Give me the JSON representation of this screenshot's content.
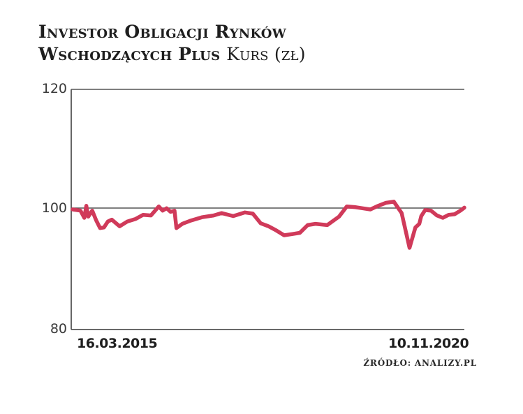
{
  "title": {
    "bold": "Investor Obligacji Rynków Wschodzących Plus",
    "light": "Kurs (zł)"
  },
  "axis": {
    "y_ticks": [
      "120",
      "100",
      "80"
    ],
    "x_start": "16.03.2015",
    "x_end": "10.11.2020"
  },
  "source": "ŹRÓDŁO: ANALIZY.PL",
  "colors": {
    "line": "#d03a5a",
    "axis": "#555555",
    "text": "#1e1e1e"
  },
  "chart_data": {
    "type": "line",
    "title": "Investor Obligacji Rynków Wschodzących Plus Kurs (zł)",
    "xlabel": "",
    "ylabel": "Kurs (zł)",
    "ylim": [
      80,
      120
    ],
    "y_ticks": [
      80,
      100,
      120
    ],
    "x_range": [
      "16.03.2015",
      "10.11.2020"
    ],
    "grid": "horizontal lines at 100 and 120",
    "legend": "none",
    "series": [
      {
        "name": "Kurs (zł)",
        "x_fraction": [
          0.0,
          0.02,
          0.03,
          0.035,
          0.04,
          0.05,
          0.06,
          0.07,
          0.08,
          0.09,
          0.1,
          0.12,
          0.14,
          0.16,
          0.18,
          0.2,
          0.22,
          0.23,
          0.24,
          0.25,
          0.26,
          0.265,
          0.28,
          0.3,
          0.33,
          0.36,
          0.38,
          0.41,
          0.44,
          0.46,
          0.48,
          0.5,
          0.52,
          0.54,
          0.56,
          0.58,
          0.6,
          0.62,
          0.65,
          0.68,
          0.7,
          0.72,
          0.74,
          0.76,
          0.78,
          0.8,
          0.82,
          0.84,
          0.86,
          0.875,
          0.885,
          0.89,
          0.9,
          0.915,
          0.93,
          0.945,
          0.96,
          0.975,
          0.99,
          1.0
        ],
        "values": [
          100.0,
          99.8,
          98.6,
          100.6,
          98.8,
          99.8,
          98.2,
          96.9,
          97.0,
          98.0,
          98.3,
          97.2,
          98.0,
          98.4,
          99.1,
          99.0,
          100.5,
          99.8,
          100.2,
          99.6,
          99.8,
          96.9,
          97.6,
          98.1,
          98.7,
          99.0,
          99.4,
          98.9,
          99.5,
          99.3,
          97.7,
          97.2,
          96.5,
          95.7,
          95.9,
          96.1,
          97.4,
          97.6,
          97.4,
          98.8,
          100.5,
          100.4,
          100.2,
          100.0,
          100.6,
          101.1,
          101.3,
          99.4,
          93.6,
          97.0,
          97.6,
          98.9,
          99.9,
          99.8,
          99.0,
          98.6,
          99.1,
          99.2,
          99.8,
          100.3
        ]
      }
    ]
  }
}
